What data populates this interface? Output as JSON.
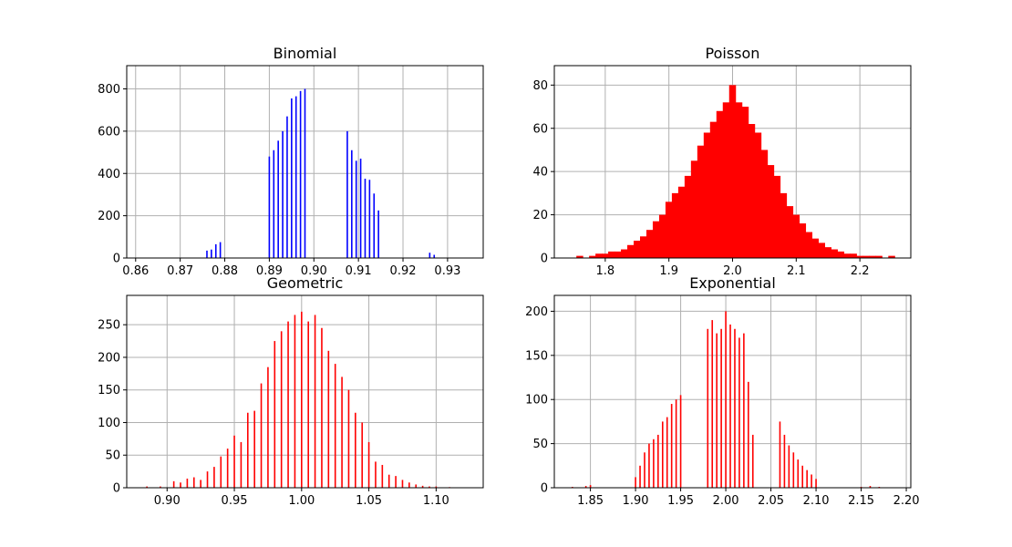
{
  "chart_data": [
    {
      "type": "bar",
      "title": "Binomial",
      "color": "#0000ff",
      "xlim": [
        0.858,
        0.938
      ],
      "ylim": [
        0,
        910
      ],
      "xticks": [
        0.86,
        0.87,
        0.88,
        0.89,
        0.9,
        0.91,
        0.92,
        0.93
      ],
      "xtick_labels": [
        "0.86",
        "0.87",
        "0.88",
        "0.89",
        "0.90",
        "0.91",
        "0.92",
        "0.93"
      ],
      "yticks": [
        0,
        200,
        400,
        600,
        800
      ],
      "ytick_labels": [
        "0",
        "200",
        "400",
        "600",
        "800"
      ],
      "grid": true,
      "x": [
        0.876,
        0.877,
        0.878,
        0.879,
        0.89,
        0.891,
        0.892,
        0.893,
        0.894,
        0.895,
        0.896,
        0.897,
        0.898,
        0.9075,
        0.9085,
        0.9095,
        0.9105,
        0.9115,
        0.9125,
        0.9135,
        0.9145,
        0.926,
        0.927
      ],
      "values": [
        35,
        40,
        65,
        75,
        480,
        510,
        555,
        600,
        670,
        755,
        765,
        790,
        800,
        600,
        510,
        460,
        470,
        375,
        370,
        305,
        225,
        25,
        15
      ]
    },
    {
      "type": "bar",
      "title": "Poisson",
      "color": "#ff0000",
      "xlim": [
        1.72,
        2.28
      ],
      "ylim": [
        0,
        89
      ],
      "xticks": [
        1.8,
        1.9,
        2.0,
        2.1,
        2.2
      ],
      "xtick_labels": [
        "1.8",
        "1.9",
        "2.0",
        "2.1",
        "2.2"
      ],
      "yticks": [
        0,
        20,
        40,
        60,
        80
      ],
      "ytick_labels": [
        "0",
        "20",
        "40",
        "60",
        "80"
      ],
      "grid": true,
      "x": [
        1.76,
        1.78,
        1.79,
        1.8,
        1.81,
        1.82,
        1.83,
        1.84,
        1.85,
        1.86,
        1.87,
        1.88,
        1.89,
        1.9,
        1.91,
        1.92,
        1.93,
        1.94,
        1.95,
        1.96,
        1.97,
        1.98,
        1.99,
        2.0,
        2.01,
        2.02,
        2.03,
        2.04,
        2.05,
        2.06,
        2.07,
        2.08,
        2.09,
        2.1,
        2.11,
        2.12,
        2.13,
        2.14,
        2.15,
        2.16,
        2.17,
        2.18,
        2.19,
        2.2,
        2.21,
        2.22,
        2.23,
        2.25
      ],
      "values": [
        1,
        1,
        2,
        2,
        3,
        3,
        4,
        6,
        8,
        10,
        13,
        17,
        20,
        26,
        30,
        33,
        38,
        45,
        52,
        58,
        63,
        68,
        72,
        80,
        72,
        70,
        62,
        58,
        50,
        43,
        38,
        30,
        24,
        20,
        16,
        12,
        9,
        7,
        5,
        4,
        3,
        2,
        2,
        1,
        1,
        1,
        1,
        1
      ]
    },
    {
      "type": "bar",
      "title": "Geometric",
      "color": "#ff0000",
      "xlim": [
        0.87,
        1.135
      ],
      "ylim": [
        0,
        295
      ],
      "xticks": [
        0.9,
        0.95,
        1.0,
        1.05,
        1.1
      ],
      "xtick_labels": [
        "0.90",
        "0.95",
        "1.00",
        "1.05",
        "1.10"
      ],
      "yticks": [
        0,
        50,
        100,
        150,
        200,
        250
      ],
      "ytick_labels": [
        "0",
        "50",
        "100",
        "150",
        "200",
        "250"
      ],
      "grid": true,
      "x": [
        0.885,
        0.895,
        0.905,
        0.91,
        0.915,
        0.92,
        0.925,
        0.93,
        0.935,
        0.94,
        0.945,
        0.95,
        0.955,
        0.96,
        0.965,
        0.97,
        0.975,
        0.98,
        0.985,
        0.99,
        0.995,
        1.0,
        1.005,
        1.01,
        1.015,
        1.02,
        1.025,
        1.03,
        1.035,
        1.04,
        1.045,
        1.05,
        1.055,
        1.06,
        1.065,
        1.07,
        1.075,
        1.08,
        1.085,
        1.09,
        1.095,
        1.1,
        1.11
      ],
      "values": [
        2,
        2,
        10,
        8,
        14,
        16,
        12,
        25,
        32,
        48,
        60,
        80,
        70,
        115,
        118,
        160,
        185,
        225,
        240,
        255,
        265,
        270,
        255,
        265,
        245,
        210,
        190,
        170,
        150,
        115,
        100,
        70,
        40,
        35,
        20,
        18,
        12,
        8,
        5,
        3,
        2,
        2,
        1
      ]
    },
    {
      "type": "bar",
      "title": "Exponential",
      "color": "#ff0000",
      "xlim": [
        1.81,
        2.205
      ],
      "ylim": [
        0,
        218
      ],
      "xticks": [
        1.85,
        1.9,
        1.95,
        2.0,
        2.05,
        2.1,
        2.15,
        2.2
      ],
      "xtick_labels": [
        "1.85",
        "1.90",
        "1.95",
        "2.00",
        "2.05",
        "2.10",
        "2.15",
        "2.20"
      ],
      "yticks": [
        0,
        50,
        100,
        150,
        200
      ],
      "ytick_labels": [
        "0",
        "50",
        "100",
        "150",
        "200"
      ],
      "grid": true,
      "x": [
        1.83,
        1.845,
        1.85,
        1.9,
        1.905,
        1.91,
        1.915,
        1.92,
        1.925,
        1.93,
        1.935,
        1.94,
        1.945,
        1.95,
        1.98,
        1.985,
        1.99,
        1.995,
        2.0,
        2.005,
        2.01,
        2.015,
        2.02,
        2.025,
        2.03,
        2.06,
        2.065,
        2.07,
        2.075,
        2.08,
        2.085,
        2.09,
        2.095,
        2.1,
        2.15,
        2.16,
        2.17
      ],
      "values": [
        1,
        2,
        3,
        12,
        25,
        40,
        50,
        55,
        60,
        75,
        80,
        95,
        100,
        105,
        180,
        190,
        175,
        180,
        200,
        185,
        180,
        170,
        175,
        120,
        60,
        75,
        60,
        48,
        40,
        32,
        25,
        20,
        15,
        10,
        1,
        2,
        1
      ]
    }
  ]
}
